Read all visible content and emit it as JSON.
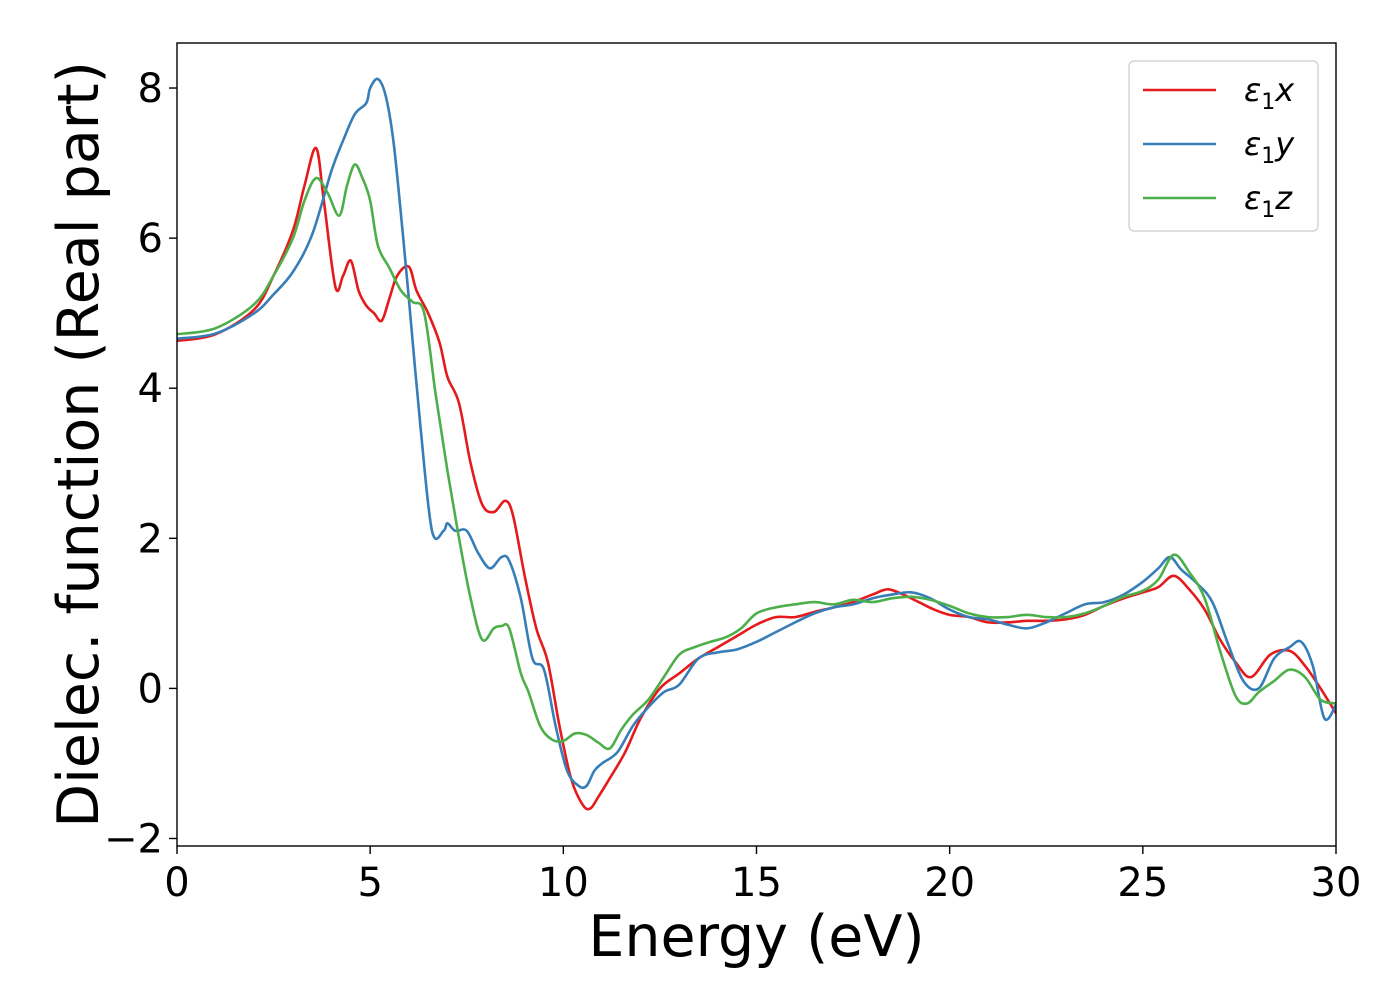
{
  "chart_data": {
    "type": "line",
    "title": "",
    "xlabel": "Energy (eV)",
    "ylabel": "Dielec. function (Real part)",
    "xlim": [
      0,
      30
    ],
    "ylim": [
      -2.1,
      8.6
    ],
    "xticks": [
      0,
      5,
      10,
      15,
      20,
      25,
      30
    ],
    "yticks": [
      -2,
      0,
      2,
      4,
      6,
      8
    ],
    "ytick_labels": [
      "−2",
      "0",
      "2",
      "4",
      "6",
      "8"
    ],
    "grid": false,
    "legend_position": "top-right",
    "series": [
      {
        "name": "ε₁x",
        "legend_main": "ε",
        "legend_sub": "1",
        "legend_tail": "x",
        "color": "#e41a1c",
        "x": [
          0,
          1,
          2,
          2.5,
          3,
          3.3,
          3.6,
          3.8,
          4.1,
          4.3,
          4.5,
          4.7,
          4.9,
          5.1,
          5.3,
          5.5,
          5.7,
          6.0,
          6.2,
          6.5,
          6.8,
          7.0,
          7.3,
          7.6,
          7.9,
          8.2,
          8.5,
          8.7,
          9.0,
          9.3,
          9.6,
          9.9,
          10.2,
          10.5,
          10.7,
          10.9,
          11.2,
          11.6,
          12.0,
          12.5,
          13.0,
          13.5,
          14.0,
          14.5,
          15.0,
          15.5,
          16.0,
          16.5,
          17.0,
          17.5,
          18.0,
          18.4,
          18.8,
          19.2,
          19.6,
          20.0,
          20.5,
          21.0,
          21.5,
          22.0,
          22.5,
          23.0,
          23.5,
          24.0,
          24.5,
          25.0,
          25.4,
          25.8,
          26.2,
          26.6,
          27.0,
          27.4,
          27.8,
          28.3,
          28.8,
          29.2,
          29.6,
          30.0
        ],
        "y": [
          4.63,
          4.72,
          5.05,
          5.5,
          6.1,
          6.7,
          7.2,
          6.5,
          5.35,
          5.5,
          5.7,
          5.3,
          5.1,
          5.0,
          4.9,
          5.2,
          5.5,
          5.62,
          5.3,
          5.0,
          4.6,
          4.15,
          3.8,
          3.0,
          2.45,
          2.35,
          2.5,
          2.3,
          1.5,
          0.8,
          0.35,
          -0.5,
          -1.2,
          -1.55,
          -1.6,
          -1.45,
          -1.2,
          -0.85,
          -0.4,
          0.0,
          0.2,
          0.4,
          0.55,
          0.7,
          0.85,
          0.95,
          0.95,
          1.02,
          1.08,
          1.15,
          1.25,
          1.32,
          1.25,
          1.15,
          1.05,
          0.98,
          0.95,
          0.88,
          0.88,
          0.9,
          0.9,
          0.92,
          0.98,
          1.1,
          1.2,
          1.28,
          1.35,
          1.5,
          1.32,
          1.05,
          0.65,
          0.35,
          0.15,
          0.45,
          0.5,
          0.3,
          0.0,
          -0.33
        ]
      },
      {
        "name": "ε₁y",
        "legend_main": "ε",
        "legend_sub": "1",
        "legend_tail": "y",
        "color": "#377eb8",
        "x": [
          0,
          1,
          2,
          2.5,
          3,
          3.5,
          4.0,
          4.3,
          4.6,
          4.9,
          5.0,
          5.2,
          5.4,
          5.6,
          5.8,
          6.0,
          6.3,
          6.6,
          6.9,
          7.0,
          7.2,
          7.5,
          7.8,
          8.1,
          8.4,
          8.6,
          8.9,
          9.2,
          9.5,
          9.8,
          10.1,
          10.4,
          10.6,
          10.8,
          11.0,
          11.4,
          11.8,
          12.2,
          12.6,
          13.0,
          13.5,
          14.0,
          14.5,
          15.0,
          15.5,
          16.0,
          16.5,
          17.0,
          17.5,
          18.0,
          18.5,
          19.0,
          19.5,
          20.0,
          20.5,
          21.0,
          21.5,
          22.0,
          22.5,
          23.0,
          23.5,
          24.0,
          24.5,
          25.0,
          25.4,
          25.7,
          26.0,
          26.4,
          26.8,
          27.2,
          27.6,
          28.0,
          28.4,
          28.8,
          29.1,
          29.4,
          29.7,
          30.0
        ],
        "y": [
          4.66,
          4.73,
          5.0,
          5.25,
          5.55,
          6.05,
          6.9,
          7.3,
          7.65,
          7.8,
          8.0,
          8.12,
          7.9,
          7.3,
          6.3,
          5.2,
          3.5,
          2.1,
          2.1,
          2.2,
          2.1,
          2.1,
          1.8,
          1.6,
          1.75,
          1.7,
          1.2,
          0.4,
          0.25,
          -0.5,
          -1.1,
          -1.3,
          -1.3,
          -1.1,
          -1.0,
          -0.85,
          -0.5,
          -0.25,
          -0.05,
          0.05,
          0.4,
          0.48,
          0.52,
          0.62,
          0.75,
          0.88,
          1.0,
          1.08,
          1.12,
          1.2,
          1.25,
          1.28,
          1.2,
          1.05,
          0.95,
          0.92,
          0.85,
          0.8,
          0.88,
          1.0,
          1.12,
          1.15,
          1.25,
          1.42,
          1.6,
          1.75,
          1.58,
          1.4,
          1.15,
          0.6,
          0.1,
          0.0,
          0.4,
          0.55,
          0.62,
          0.3,
          -0.4,
          -0.22
        ]
      },
      {
        "name": "ε₁z",
        "legend_main": "ε",
        "legend_sub": "1",
        "legend_tail": "z",
        "color": "#4daf4a",
        "x": [
          0,
          1,
          2,
          2.5,
          3,
          3.3,
          3.6,
          3.9,
          4.2,
          4.4,
          4.6,
          4.8,
          5.0,
          5.2,
          5.5,
          5.8,
          6.1,
          6.4,
          6.7,
          7.0,
          7.3,
          7.6,
          7.9,
          8.2,
          8.4,
          8.6,
          8.9,
          9.1,
          9.4,
          9.7,
          10.0,
          10.3,
          10.6,
          10.9,
          11.2,
          11.5,
          11.8,
          12.2,
          12.6,
          13.0,
          13.4,
          13.8,
          14.2,
          14.6,
          15.0,
          15.5,
          16.0,
          16.5,
          17.0,
          17.5,
          18.0,
          18.5,
          19.0,
          19.5,
          20.0,
          20.5,
          21.0,
          21.5,
          22.0,
          22.5,
          23.0,
          23.5,
          24.0,
          24.5,
          25.0,
          25.4,
          25.8,
          26.2,
          26.6,
          27.0,
          27.4,
          27.7,
          28.0,
          28.4,
          28.8,
          29.2,
          29.6,
          30.0
        ],
        "y": [
          4.72,
          4.8,
          5.12,
          5.5,
          6.0,
          6.5,
          6.8,
          6.6,
          6.3,
          6.7,
          6.98,
          6.8,
          6.5,
          5.9,
          5.6,
          5.3,
          5.15,
          5.0,
          3.9,
          2.9,
          2.0,
          1.2,
          0.65,
          0.8,
          0.83,
          0.8,
          0.2,
          -0.05,
          -0.5,
          -0.68,
          -0.7,
          -0.6,
          -0.62,
          -0.72,
          -0.8,
          -0.55,
          -0.35,
          -0.15,
          0.15,
          0.45,
          0.55,
          0.62,
          0.68,
          0.8,
          1.0,
          1.08,
          1.12,
          1.15,
          1.12,
          1.18,
          1.15,
          1.2,
          1.22,
          1.18,
          1.1,
          1.0,
          0.95,
          0.95,
          0.98,
          0.95,
          0.95,
          1.0,
          1.1,
          1.22,
          1.3,
          1.45,
          1.78,
          1.55,
          1.2,
          0.5,
          -0.1,
          -0.2,
          -0.05,
          0.1,
          0.25,
          0.15,
          -0.15,
          -0.2
        ]
      }
    ]
  }
}
